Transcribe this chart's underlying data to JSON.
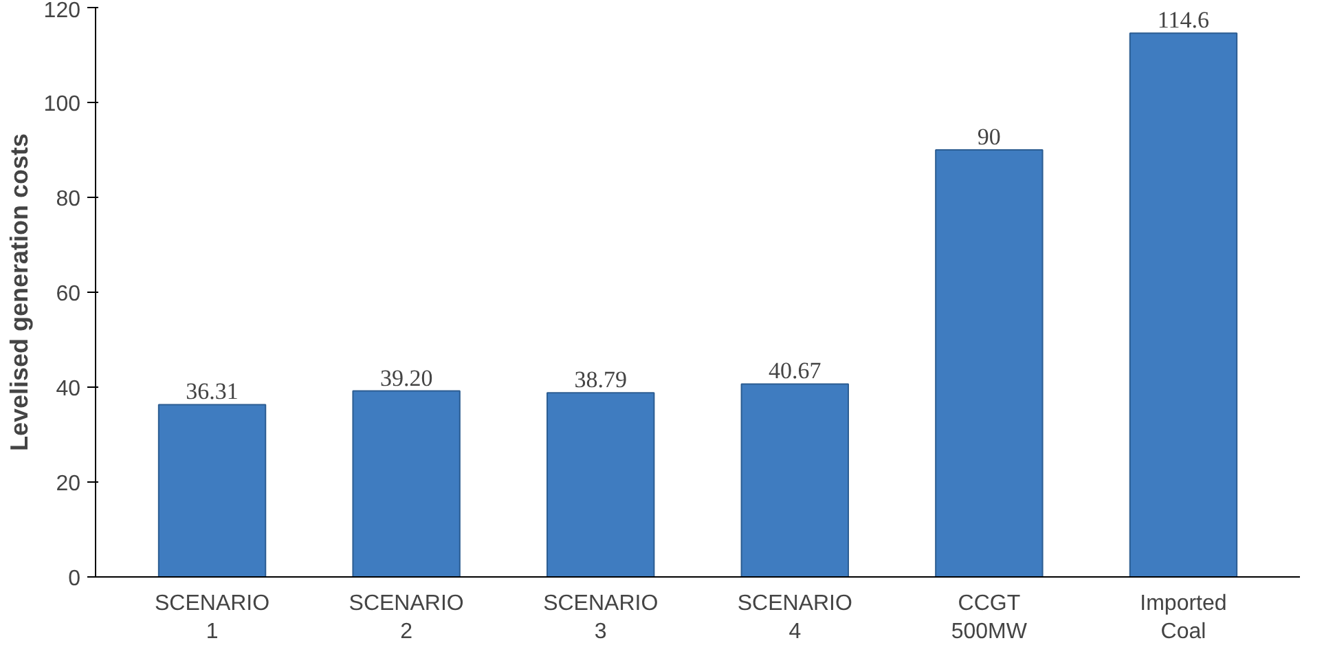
{
  "chart_data": {
    "type": "bar",
    "ylabel": "Levelised generation costs",
    "categories": [
      "SCENARIO\n1",
      "SCENARIO\n2",
      "SCENARIO\n3",
      "SCENARIO\n4",
      "CCGT\n500MW",
      "Imported\nCoal"
    ],
    "values": [
      36.31,
      39.2,
      38.79,
      40.67,
      90,
      114.6
    ],
    "value_labels": [
      "36.31",
      "39.20",
      "38.79",
      "40.67",
      "90",
      "114.6"
    ],
    "color": "#3f7cc0",
    "ylim": [
      0,
      120
    ],
    "yticks": [
      0,
      20,
      40,
      60,
      80,
      100,
      120
    ],
    "grid": false
  }
}
